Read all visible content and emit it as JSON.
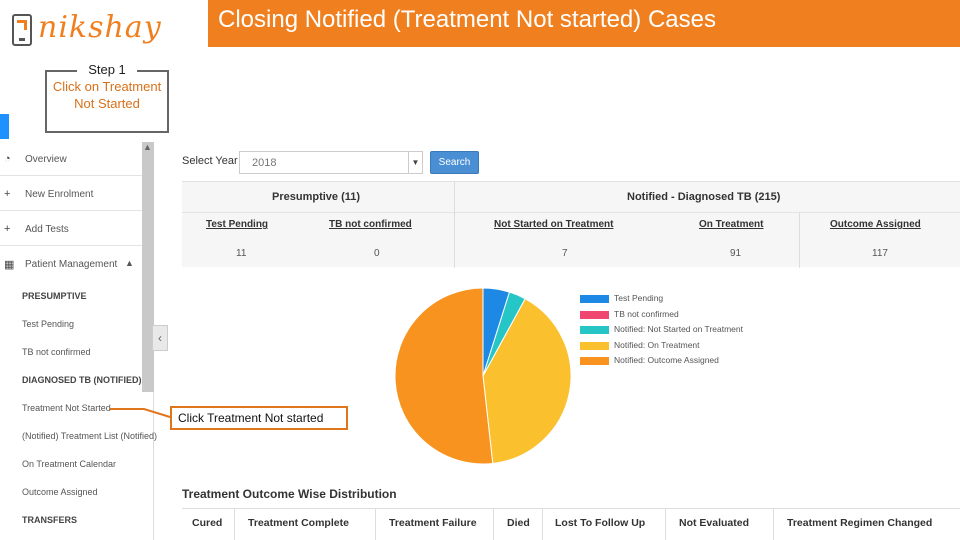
{
  "header": {
    "logo_text": "nikshay",
    "title": "Closing Notified (Treatment Not started) Cases"
  },
  "step": {
    "title": "Step 1",
    "text": "Click on Treatment Not Started"
  },
  "callout": {
    "text": "Click Treatment Not started"
  },
  "sidebar": {
    "items": [
      {
        "label": "Overview",
        "icon": "dashboard-icon"
      },
      {
        "label": "New Enrolment",
        "icon": "plus-icon"
      },
      {
        "label": "Add Tests",
        "icon": "plus-icon"
      },
      {
        "label": "Patient Management",
        "icon": "calendar-icon"
      }
    ],
    "presumptive_head": "PRESUMPTIVE",
    "test_pending": "Test Pending",
    "tb_not_confirmed": "TB not confirmed",
    "diagnosed_head": "DIAGNOSED TB (NOTIFIED)",
    "treatment_not_started": "Treatment Not Started",
    "notified_list": "(Notified) Treatment List (Notified)",
    "on_treatment_calendar": "On Treatment Calendar",
    "outcome_assigned": "Outcome Assigned",
    "transfers_head": "TRANSFERS"
  },
  "filter": {
    "select_label": "Select Year",
    "year_value": "2018",
    "search_label": "Search"
  },
  "stats": {
    "presumptive_head": "Presumptive (11)",
    "notified_head": "Notified - Diagnosed TB (215)",
    "columns": [
      {
        "label": "Test Pending",
        "value": "11"
      },
      {
        "label": "TB not confirmed",
        "value": "0"
      },
      {
        "label": "Not Started on Treatment",
        "value": "7"
      },
      {
        "label": "On Treatment",
        "value": "91"
      },
      {
        "label": "Outcome Assigned",
        "value": "117"
      }
    ]
  },
  "chart_data": {
    "type": "pie",
    "series": [
      {
        "name": "Test Pending",
        "value": 11,
        "color": "#1e88e5"
      },
      {
        "name": "TB not confirmed",
        "value": 0,
        "color": "#ef476f"
      },
      {
        "name": "Notified: Not Started on Treatment",
        "value": 7,
        "color": "#26c6c6"
      },
      {
        "name": "Notified: On Treatment",
        "value": 91,
        "color": "#fbc02d"
      },
      {
        "name": "Notified: Outcome Assigned",
        "value": 117,
        "color": "#f7931e"
      }
    ],
    "legend_position": "right"
  },
  "distribution": {
    "title": "Treatment Outcome Wise Distribution",
    "columns": [
      "Cured",
      "Treatment Complete",
      "Treatment Failure",
      "Died",
      "Lost To Follow Up",
      "Not Evaluated",
      "Treatment Regimen Changed"
    ]
  }
}
